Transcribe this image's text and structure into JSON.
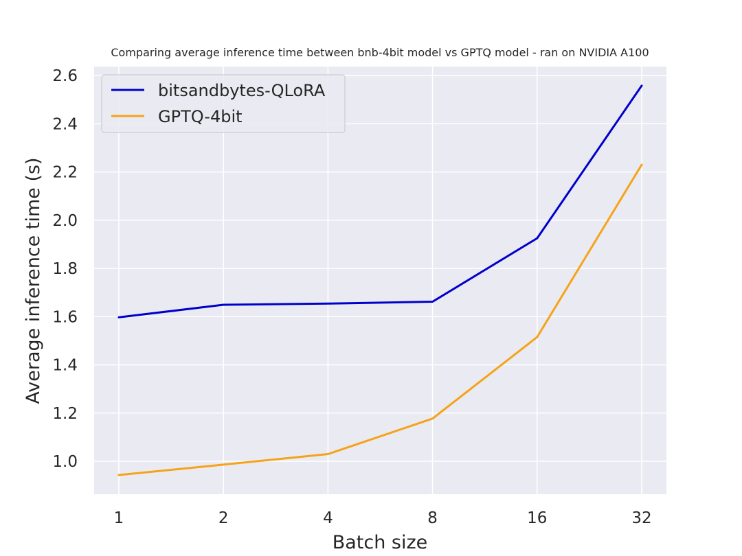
{
  "chart_data": {
    "type": "line",
    "title": "Comparing average inference time between bnb-4bit model vs GPTQ model - ran on NVIDIA A100",
    "xlabel": "Batch size",
    "ylabel": "Average inference time (s)",
    "categories": [
      "1",
      "2",
      "4",
      "8",
      "16",
      "32"
    ],
    "ylim": [
      0.9,
      2.6
    ],
    "yticks": [
      "1.0",
      "1.2",
      "1.4",
      "1.6",
      "1.8",
      "2.0",
      "2.2",
      "2.4",
      "2.6"
    ],
    "grid": true,
    "legend_position": "top-left",
    "series": [
      {
        "name": "bitsandbytes-QLoRA",
        "color": "#0000cc",
        "values": [
          1.597,
          1.649,
          1.654,
          1.662,
          1.925,
          2.558
        ]
      },
      {
        "name": "GPTQ-4bit",
        "color": "#f5a318",
        "values": [
          0.943,
          0.986,
          1.03,
          1.177,
          1.515,
          2.23
        ]
      }
    ]
  }
}
